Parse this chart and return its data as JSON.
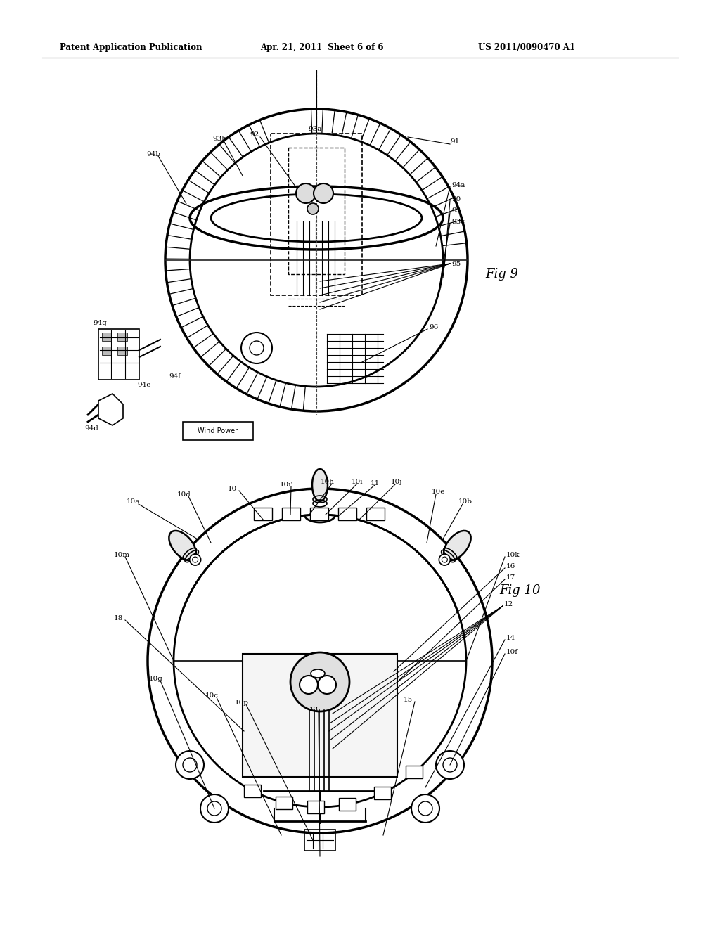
{
  "title_left": "Patent Application Publication",
  "title_mid": "Apr. 21, 2011  Sheet 6 of 6",
  "title_right": "US 2011/0090470 A1",
  "fig9_label": "Fig 9",
  "fig10_label": "Fig 10",
  "bg_color": "#ffffff"
}
